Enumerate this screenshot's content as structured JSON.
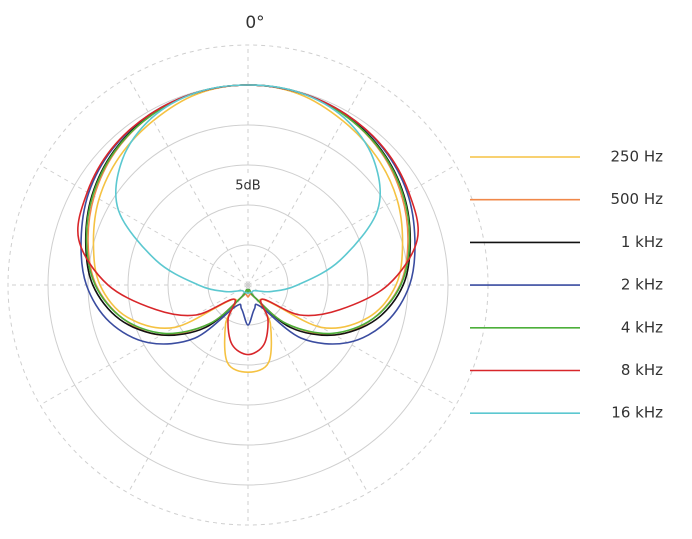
{
  "chart_data": {
    "type": "polar-line",
    "theta": [
      0,
      15,
      30,
      45,
      60,
      75,
      90,
      105,
      120,
      135,
      150,
      165,
      180,
      195,
      210,
      225,
      240,
      255,
      270,
      285,
      300,
      315,
      330,
      345
    ],
    "thetaticks": [
      {
        "value": 0,
        "label": "0°"
      },
      30,
      60,
      90,
      120,
      150,
      180,
      210,
      240,
      270,
      300,
      330
    ],
    "rlim": [
      -25,
      5
    ],
    "rticks": [
      -20,
      -15,
      -10,
      -5,
      0,
      5
    ],
    "annotation": "5dB",
    "series": [
      {
        "name": "250 Hz",
        "color": "#f5c242",
        "values": [
          0,
          -0.3,
          -1.3,
          -2.3,
          -3.5,
          -5,
          -6.5,
          -9.4,
          -14.4,
          -22.5,
          -19.4,
          -15,
          -14.1,
          -15,
          -19.4,
          -22.5,
          -14.4,
          -9.4,
          -6.5,
          -5,
          -3.5,
          -2.3,
          -1.3,
          -0.3
        ]
      },
      {
        "name": "500 Hz",
        "color": "#f0884a",
        "values": [
          0,
          -0.1,
          -0.6,
          -1.5,
          -2.8,
          -4.3,
          -6,
          -8.8,
          -12.5,
          -18.1,
          -23.1,
          -23.8,
          -23.5,
          -23.8,
          -23.1,
          -18.1,
          -12.5,
          -8.8,
          -6,
          -4.3,
          -2.8,
          -1.5,
          -0.6,
          -0.1
        ]
      },
      {
        "name": "1 kHz",
        "color": "#111111",
        "values": [
          0,
          -0.1,
          -0.5,
          -1.3,
          -2.5,
          -4,
          -5.6,
          -8.4,
          -12.5,
          -17.5,
          -23.1,
          -24.4,
          -24,
          -24.4,
          -23.1,
          -17.5,
          -12.5,
          -8.4,
          -5.6,
          -4,
          -2.5,
          -1.3,
          -0.5,
          -0.1
        ]
      },
      {
        "name": "2 kHz",
        "color": "#3a4ca0",
        "values": [
          0,
          -0.1,
          -0.4,
          -1,
          -2,
          -3.4,
          -4.8,
          -7.1,
          -10.6,
          -15.6,
          -21.9,
          -21.9,
          -20,
          -21.9,
          -21.9,
          -15.6,
          -10.6,
          -7.1,
          -4.8,
          -3.4,
          -2,
          -1,
          -0.4,
          -0.1
        ]
      },
      {
        "name": "4 kHz",
        "color": "#4caf3a",
        "values": [
          0,
          -0.1,
          -0.6,
          -1.4,
          -2.6,
          -4.1,
          -5.9,
          -8.8,
          -12.9,
          -18.1,
          -23.1,
          -24.4,
          -24,
          -24.4,
          -23.1,
          -18.1,
          -12.9,
          -8.8,
          -5.9,
          -4.1,
          -2.6,
          -1.4,
          -0.6,
          -0.1
        ]
      },
      {
        "name": "8 kHz",
        "color": "#d8262a",
        "values": [
          0,
          -0.1,
          -0.4,
          -0.9,
          -1.8,
          -3.1,
          -7.5,
          -13.1,
          -17.5,
          -22.5,
          -20,
          -17.3,
          -16.3,
          -17.3,
          -20,
          -22.5,
          -17.5,
          -13.1,
          -7.5,
          -3.1,
          -1.8,
          -0.9,
          -0.4,
          -0.1
        ]
      },
      {
        "name": "16 kHz",
        "color": "#5cc8d0",
        "values": [
          0,
          -0.1,
          -0.9,
          -2.8,
          -6.3,
          -13.1,
          -18.8,
          -21.9,
          -23.5,
          -24,
          -24,
          -24,
          -24,
          -24,
          -24,
          -24,
          -23.5,
          -21.9,
          -18.8,
          -13.1,
          -6.3,
          -2.8,
          -0.9,
          -0.1
        ]
      }
    ]
  }
}
